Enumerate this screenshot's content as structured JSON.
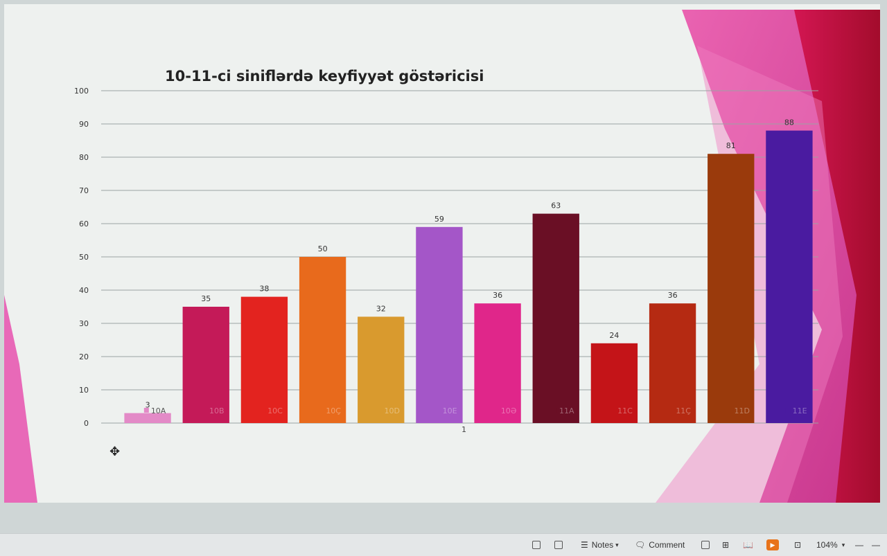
{
  "chart_data": {
    "type": "bar",
    "title": "10-11-ci siniflərdə keyfiyyət göstəricisi",
    "categories": [
      "10A",
      "10B",
      "10C",
      "10Ç",
      "10D",
      "10E",
      "10Ə",
      "11A",
      "11C",
      "11Ç",
      "11D",
      "11E"
    ],
    "values": [
      3,
      35,
      38,
      50,
      32,
      59,
      36,
      63,
      24,
      36,
      81,
      88
    ],
    "colors": [
      "#e38ac7",
      "#c41a58",
      "#e3231f",
      "#e86a1c",
      "#d99a2e",
      "#a456c8",
      "#e0268a",
      "#6a0f25",
      "#c41418",
      "#b52a12",
      "#9a3a0c",
      "#4a1ba0"
    ],
    "y_ticks": [
      0,
      10,
      20,
      30,
      40,
      50,
      60,
      70,
      80,
      90,
      100
    ],
    "ylim": [
      0,
      100
    ],
    "x_category_label": "1",
    "grid": true
  },
  "statusbar": {
    "notes_label": "Notes",
    "comment_label": "Comment",
    "zoom_label": "104%"
  }
}
